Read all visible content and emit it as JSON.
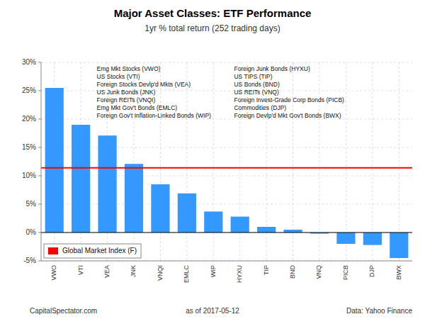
{
  "chart_data": {
    "type": "bar",
    "title": "Major Asset Classes: ETF Performance",
    "subtitle": "1yr % total return (252 trading days)",
    "categories": [
      "VWO",
      "VTI",
      "VEA",
      "JNK",
      "VNQI",
      "EMLC",
      "WIP",
      "HYXU",
      "TIP",
      "BND",
      "VNQ",
      "PICB",
      "DJP",
      "BWX"
    ],
    "values": [
      25.5,
      19.0,
      17.1,
      12.1,
      8.5,
      6.9,
      3.7,
      2.8,
      1.0,
      0.5,
      -0.2,
      -2.0,
      -2.2,
      -4.5
    ],
    "color": "#3399FF",
    "reference_line": {
      "value": 11.4,
      "label": "Global Market Index (F)",
      "color": "#FF0000"
    },
    "ylim": [
      -5,
      30
    ],
    "yticks": [
      {
        "value": -5,
        "label": "-5%"
      },
      {
        "value": 0,
        "label": "0%"
      },
      {
        "value": 5,
        "label": "5%"
      },
      {
        "value": 10,
        "label": "10%"
      },
      {
        "value": 15,
        "label": "15%"
      },
      {
        "value": 20,
        "label": "20%"
      },
      {
        "value": 25,
        "label": "25%"
      },
      {
        "value": 30,
        "label": "30%"
      }
    ],
    "grid": true,
    "legend": "lower left",
    "annotations": [
      "Emg Mkt Stocks (VWO)",
      "US Stocks (VTI)",
      "Foreign Stocks Devlp'd Mkts (VEA)",
      "US Junk Bonds (JNK)",
      "Foreign REITs (VNQI)",
      "Emg Mkt Gov't Bonds (EMLC)",
      "Foreign Gov't Inflation-Linked Bonds (WIP)",
      "Foreign Junk Bonds (HYXU)",
      "US TIPS (TIP)",
      "US Bonds (BND)",
      "US REITs (VNQ)",
      "Foreign Invest-Grade Corp Bonds (PICB)",
      "Commodities (DJP)",
      "Foreign Devlp'd Mkt Gov't Bonds (BWX)"
    ],
    "footer": [
      "CapitalSpectator.com",
      "as of   2017-05-12",
      "Data: Yahoo Finance"
    ]
  }
}
